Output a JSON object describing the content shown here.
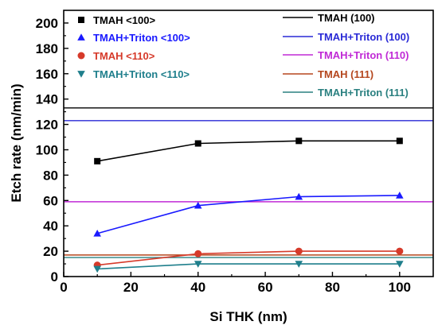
{
  "chart_data": {
    "type": "scatter",
    "xlabel": "Si THK (nm)",
    "ylabel": "Etch rate (nm/min)",
    "xlim": [
      0,
      110
    ],
    "ylim": [
      0,
      210
    ],
    "xticks": [
      0,
      20,
      40,
      60,
      80,
      100
    ],
    "yticks": [
      0,
      20,
      40,
      60,
      80,
      100,
      120,
      140,
      160,
      180,
      200
    ],
    "grid": false,
    "legend_position": "top",
    "series": [
      {
        "name": "TMAH <100>",
        "color": "#000000",
        "marker": "square",
        "x": [
          10,
          40,
          70,
          100
        ],
        "values": [
          91,
          105,
          107,
          107
        ]
      },
      {
        "name": "TMAH+Triton <100>",
        "color": "#1a1aff",
        "marker": "triangle-up",
        "x": [
          10,
          40,
          70,
          100
        ],
        "values": [
          34,
          56,
          63,
          64
        ]
      },
      {
        "name": "TMAH  <110>",
        "color": "#d63a2a",
        "marker": "circle",
        "x": [
          10,
          40,
          70,
          100
        ],
        "values": [
          9,
          18,
          20,
          20
        ]
      },
      {
        "name": "TMAH+Triton <110>",
        "color": "#1f7f8c",
        "marker": "triangle-down",
        "x": [
          10,
          40,
          70,
          100
        ],
        "values": [
          6,
          10,
          10,
          10
        ]
      }
    ],
    "reference_lines": [
      {
        "name": "TMAH (100)",
        "color": "#000000",
        "value": 133
      },
      {
        "name": "TMAH+Triton (100)",
        "color": "#2a2ad6",
        "value": 123
      },
      {
        "name": "TMAH+Triton (110)",
        "color": "#c02ad6",
        "value": 59
      },
      {
        "name": "TMAH (111)",
        "color": "#b5471e",
        "value": 17
      },
      {
        "name": "TMAH+Triton (111)",
        "color": "#2a8080",
        "value": 15
      }
    ]
  }
}
